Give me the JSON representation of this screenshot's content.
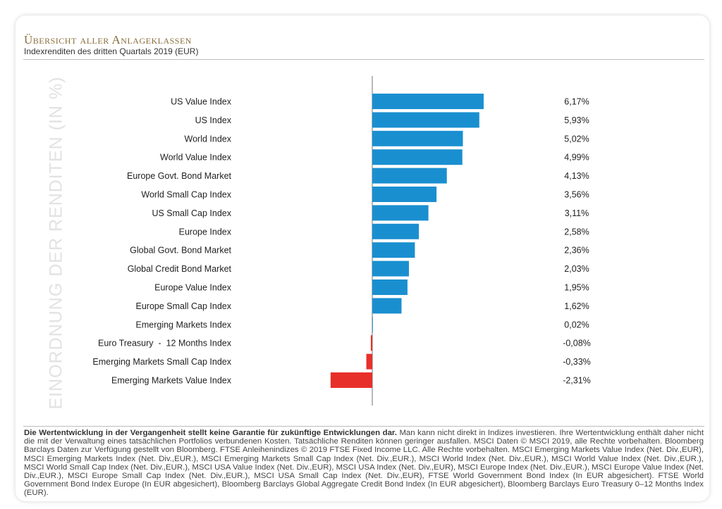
{
  "header": {
    "title": "Übersicht aller Anlageklassen",
    "subtitle": "Indexrenditen des dritten Quartals 2019 (EUR)"
  },
  "side_label": "EINORDNUNG DER RENDITEN (IN %)",
  "colors": {
    "positive": "#1a8fd0",
    "negative": "#e8302a"
  },
  "chart_data": {
    "type": "bar",
    "orientation": "horizontal",
    "categories": [
      "US Value Index",
      "US Index",
      "World Index",
      "World Value Index",
      "Europe Govt. Bond Market",
      "World Small Cap Index",
      "US Small Cap Index",
      "Europe Index",
      "Global Govt. Bond Market",
      "Global Credit Bond Market",
      "Europe Value Index",
      "Europe Small Cap Index",
      "Emerging Markets Index",
      "Euro Treasury  -  12 Months Index",
      "Emerging Markets Small Cap Index",
      "Emerging Markets Value Index"
    ],
    "values": [
      6.17,
      5.93,
      5.02,
      4.99,
      4.13,
      3.56,
      3.11,
      2.58,
      2.36,
      2.03,
      1.95,
      1.62,
      0.02,
      -0.08,
      -0.33,
      -2.31
    ],
    "value_labels": [
      "6,17%",
      "5,93%",
      "5,02%",
      "4,99%",
      "4,13%",
      "3,56%",
      "3,11%",
      "2,58%",
      "2,36%",
      "2,03%",
      "1,95%",
      "1,62%",
      "0,02%",
      "-0,08%",
      "-0,33%",
      "-2,31%"
    ],
    "ylabel": "EINORDNUNG DER RENDITEN (IN %)",
    "grid": false,
    "legend": "none"
  },
  "footer": {
    "bold": "Die Wertentwicklung in der Vergangenheit stellt keine Garantie für zukünftige Entwicklungen dar.",
    "text": " Man kann nicht direkt in Indizes investieren. Ihre Wertent­wicklung enthält daher nicht die mit der Verwaltung eines tatsächlichen Portfolios verbundenen Kosten. Tatsächliche Renditen können geringer ausfallen. MSCI Daten © MSCI 2019, alle Rechte vorbehalten. Bloomberg Barclays Daten zur Verfügung gestellt von Bloomberg. FTSE Anleihenindizes © 2019 FTSE Fixed Income LLC. Alle Rechte vorbehal­ten. MSCI Emerging Markets Value Index (Net. Div.,EUR), MSCI Emerging Markets Index (Net. Div.,EUR.), MSCI Emerging Markets Small Cap Index (Net. Div.,EUR.), MSCI World Index (Net. Div.,EUR.), MSCI World Value Index (Net. Div.,EUR.), MSCI World Small Cap Index (Net. Div.,EUR.), MSCI USA Value Index (Net. Div.,EUR), MSCI USA Index (Net. Div.,EUR), MSCI Europe Index (Net. Div.,EUR.), MSCI Europe Value Index (Net. Div.,EUR.), MSCI Europe Small Cap Index (Net. Div.,EUR.), MSCI USA Small Cap Index (Net. Div.,EUR), FTSE World Government Bond Index (In EUR abgesichert). FTSE World Government Bond Index Europe (In EUR abgesichert), Bloomberg Barclays Global Aggregate Credit Bond Index (In EUR abgesichert), Bloomberg Barclays Euro Treasury 0–12 Months Index (EUR)."
  }
}
